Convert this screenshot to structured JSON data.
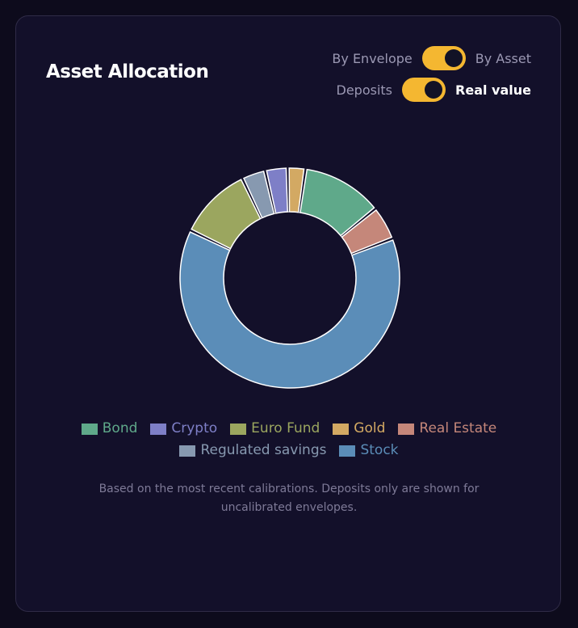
{
  "header": {
    "title": "Asset Allocation",
    "toggles": [
      {
        "left_label": "By Envelope",
        "right_label": "By Asset",
        "state": "right"
      },
      {
        "left_label": "Deposits",
        "right_label": "Real value",
        "state": "right"
      }
    ]
  },
  "colors": {
    "toggle_accent": "#f4b731",
    "card_background": "#13102a"
  },
  "chart_data": {
    "type": "pie",
    "variant": "donut",
    "legend_position": "bottom",
    "categories": [
      "Bond",
      "Crypto",
      "Euro Fund",
      "Gold",
      "Real Estate",
      "Regulated savings",
      "Stock"
    ],
    "values": [
      11.9,
      3.3,
      10.8,
      2.6,
      5.0,
      3.5,
      63.0
    ],
    "colors": [
      "#5fa98a",
      "#7e7fc7",
      "#9ba65f",
      "#d3a963",
      "#c5877a",
      "#8799b0",
      "#5b8db8"
    ],
    "draw_order": [
      "Stock",
      "Euro Fund",
      "Regulated savings",
      "Crypto",
      "Gold",
      "Bond",
      "Real Estate"
    ]
  },
  "note": "Based on the most recent calibrations. Deposits only are shown for uncalibrated envelopes."
}
